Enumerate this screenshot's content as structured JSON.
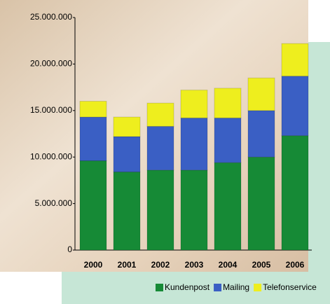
{
  "chart_data": {
    "type": "bar",
    "stacked": true,
    "categories": [
      "2000",
      "2001",
      "2002",
      "2003",
      "2004",
      "2005",
      "2006"
    ],
    "series": [
      {
        "name": "Kundenpost",
        "color": "#168a36",
        "values": [
          9600000,
          8400000,
          8600000,
          8600000,
          9400000,
          10000000,
          12300000
        ]
      },
      {
        "name": "Mailing",
        "color": "#3a5fc4",
        "values": [
          4700000,
          3800000,
          4700000,
          5600000,
          4800000,
          5000000,
          6400000
        ]
      },
      {
        "name": "Telefonservice",
        "color": "#eeee1e",
        "values": [
          1700000,
          2100000,
          2500000,
          3000000,
          3200000,
          3500000,
          3500000
        ]
      }
    ],
    "ylim": [
      0,
      25000000
    ],
    "yticks": [
      0,
      {
        "value": 5000000,
        "label": "5.000.000"
      },
      {
        "value": 10000000,
        "label": "10.000.000"
      },
      {
        "value": 15000000,
        "label": "15.000.000"
      },
      {
        "value": 20000000,
        "label": "20.000.000"
      },
      {
        "value": 25000000,
        "label": "25.000.000"
      }
    ],
    "legend": "bottom"
  }
}
